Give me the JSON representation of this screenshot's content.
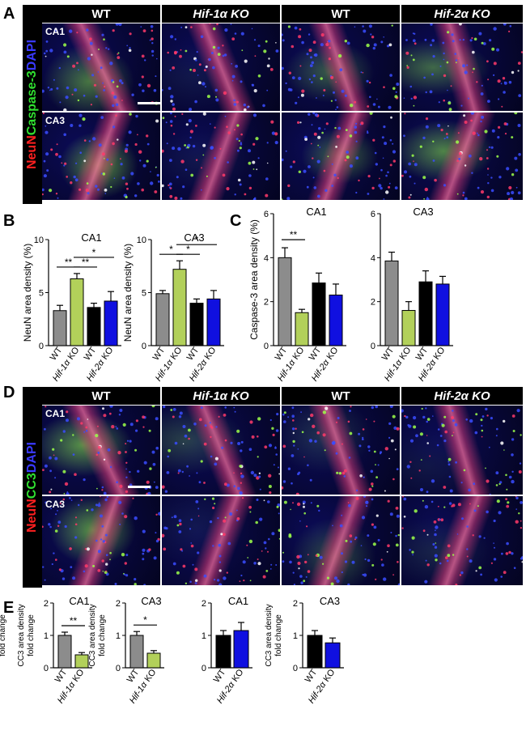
{
  "panels": {
    "A": "A",
    "B": "B",
    "C": "C",
    "D": "D",
    "E": "E"
  },
  "microscopy_top": {
    "headers": [
      "WT",
      "Hif-1α KO",
      "WT",
      "Hif-2α KO"
    ],
    "stain_label": [
      {
        "text": "NeuN",
        "color": "#ff2020"
      },
      {
        "text": "Caspase-3",
        "color": "#30e030"
      },
      {
        "text": "DAPI",
        "color": "#3a3aff"
      }
    ],
    "rows": [
      "CA1",
      "CA3"
    ]
  },
  "microscopy_bottom": {
    "headers": [
      "WT",
      "Hif-1α KO",
      "WT",
      "Hif-2α KO"
    ],
    "stain_label": [
      {
        "text": "NeuN",
        "color": "#ff2020"
      },
      {
        "text": "CC3",
        "color": "#30e030"
      },
      {
        "text": "DAPI",
        "color": "#3a3aff"
      }
    ],
    "rows": [
      "CA1",
      "CA3"
    ]
  },
  "colors": {
    "wt_gray": "#8c8c8c",
    "hif1_green": "#b2d05a",
    "wt_black": "#000000",
    "hif2_blue": "#1010e0"
  },
  "chart_data": [
    {
      "panel": "B",
      "type": "bar",
      "title": "CA1",
      "ylabel": "NeuN area density (%)",
      "categories": [
        "WT",
        "Hif-1α KO",
        "WT",
        "Hif-2α KO"
      ],
      "values": [
        3.3,
        6.3,
        3.6,
        4.2
      ],
      "errors": [
        0.5,
        0.5,
        0.4,
        0.9
      ],
      "ylim": [
        0,
        10
      ],
      "yticks": [
        0,
        5,
        10
      ],
      "significance": [
        {
          "pair": [
            0,
            1
          ],
          "label": "**"
        },
        {
          "pair": [
            1,
            2
          ],
          "label": "**"
        },
        {
          "pair": [
            1,
            3
          ],
          "label": "*"
        }
      ]
    },
    {
      "panel": "B",
      "type": "bar",
      "title": "CA3",
      "ylabel": "NeuN area density (%)",
      "categories": [
        "WT",
        "Hif-1α KO",
        "WT",
        "Hif-2α KO"
      ],
      "values": [
        4.9,
        7.2,
        4.0,
        4.4
      ],
      "errors": [
        0.3,
        0.8,
        0.4,
        0.8
      ],
      "ylim": [
        0,
        10
      ],
      "yticks": [
        0,
        5,
        10
      ],
      "significance": [
        {
          "pair": [
            0,
            1
          ],
          "label": "*"
        },
        {
          "pair": [
            1,
            2
          ],
          "label": "*"
        },
        {
          "pair": [
            1,
            3
          ],
          "label": "*"
        }
      ]
    },
    {
      "panel": "C",
      "type": "bar",
      "title": "CA1",
      "ylabel": "Caspase-3 area density (%)",
      "categories": [
        "WT",
        "Hif-1α KO",
        "WT",
        "Hif-2α KO"
      ],
      "values": [
        4.0,
        1.5,
        2.85,
        2.3
      ],
      "errors": [
        0.45,
        0.15,
        0.45,
        0.5
      ],
      "ylim": [
        0,
        6
      ],
      "yticks": [
        0,
        2,
        4,
        6
      ],
      "significance": [
        {
          "pair": [
            0,
            1
          ],
          "label": "**"
        }
      ]
    },
    {
      "panel": "C",
      "type": "bar",
      "title": "CA3",
      "ylabel": "",
      "categories": [
        "WT",
        "Hif-1α KO",
        "WT",
        "Hif-2α KO"
      ],
      "values": [
        3.85,
        1.6,
        2.9,
        2.8
      ],
      "errors": [
        0.4,
        0.4,
        0.5,
        0.35
      ],
      "ylim": [
        0,
        6
      ],
      "yticks": [
        0,
        2,
        4,
        6
      ],
      "significance": []
    },
    {
      "panel": "E",
      "type": "bar",
      "title": "CA1",
      "ylabel": "CC3 area density fold change",
      "categories": [
        "WT",
        "Hif-1α KO"
      ],
      "values": [
        1.0,
        0.4
      ],
      "errors": [
        0.1,
        0.07
      ],
      "ylim": [
        0,
        2
      ],
      "yticks": [
        0,
        1,
        2
      ],
      "significance": [
        {
          "pair": [
            0,
            1
          ],
          "label": "**"
        }
      ]
    },
    {
      "panel": "E",
      "type": "bar",
      "title": "CA3",
      "ylabel": "CC3 area density fold change",
      "categories": [
        "WT",
        "Hif-1α KO"
      ],
      "values": [
        1.0,
        0.45
      ],
      "errors": [
        0.12,
        0.08
      ],
      "ylim": [
        0,
        2
      ],
      "yticks": [
        0,
        1,
        2
      ],
      "significance": [
        {
          "pair": [
            0,
            1
          ],
          "label": "*"
        }
      ]
    },
    {
      "panel": "E",
      "type": "bar",
      "title": "CA1",
      "ylabel": "CC3 area density fold change",
      "categories": [
        "WT",
        "Hif-2α KO"
      ],
      "values": [
        1.0,
        1.15
      ],
      "errors": [
        0.15,
        0.25
      ],
      "ylim": [
        0,
        2
      ],
      "yticks": [
        0,
        1,
        2
      ],
      "significance": []
    },
    {
      "panel": "E",
      "type": "bar",
      "title": "CA3",
      "ylabel": "CC3 area density fold change",
      "categories": [
        "WT",
        "Hif-2α KO"
      ],
      "values": [
        1.0,
        0.77
      ],
      "errors": [
        0.15,
        0.15
      ],
      "ylim": [
        0,
        2
      ],
      "yticks": [
        0,
        1,
        2
      ],
      "significance": []
    }
  ]
}
